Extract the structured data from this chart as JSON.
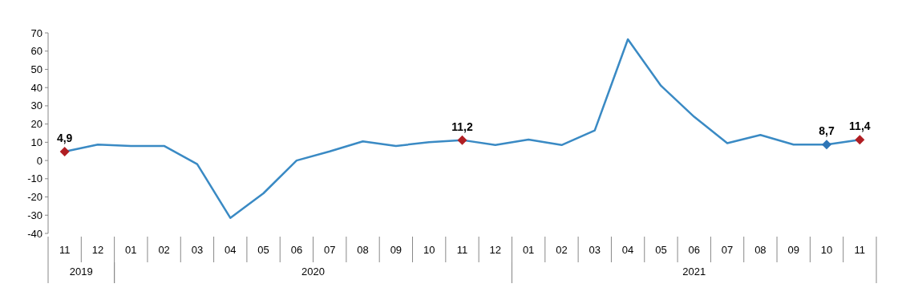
{
  "chart_data": {
    "type": "line",
    "categories": [
      "11",
      "12",
      "01",
      "02",
      "03",
      "04",
      "05",
      "06",
      "07",
      "08",
      "09",
      "10",
      "11",
      "12",
      "01",
      "02",
      "03",
      "04",
      "05",
      "06",
      "07",
      "08",
      "09",
      "10",
      "11"
    ],
    "annotations": [
      "2019",
      "2020",
      "2021"
    ],
    "series": [
      {
        "color": "#3a8ac4",
        "values": [
          4.9,
          8.7,
          8,
          8,
          -2,
          -31.5,
          -18,
          0,
          5,
          10.5,
          8,
          10,
          11.2,
          8.5,
          11.5,
          8.5,
          16.5,
          66.5,
          41,
          24,
          9.5,
          14,
          8.7,
          8.7,
          11.4
        ]
      },
      {
        "type": "scatter",
        "colors": [
          "#b01e23",
          null,
          null,
          null,
          null,
          null,
          null,
          null,
          null,
          null,
          null,
          null,
          "#b01e23",
          null,
          null,
          null,
          null,
          null,
          null,
          null,
          null,
          null,
          null,
          "#2e75b6",
          "#b01e23"
        ],
        "values": [
          4.9,
          null,
          null,
          null,
          null,
          null,
          null,
          null,
          null,
          null,
          null,
          null,
          11.2,
          null,
          null,
          null,
          null,
          null,
          null,
          null,
          null,
          null,
          null,
          8.7,
          11.4
        ],
        "value_labels": [
          "4,9",
          null,
          null,
          null,
          null,
          null,
          null,
          null,
          null,
          null,
          null,
          null,
          "11,2",
          null,
          null,
          null,
          null,
          null,
          null,
          null,
          null,
          null,
          null,
          "8,7",
          "11,4"
        ],
        "marker": "diamond"
      }
    ],
    "ylim": [
      -40,
      70
    ],
    "yticks": [
      -40,
      -30,
      -20,
      -10,
      0,
      10,
      20,
      30,
      40,
      50,
      60,
      70
    ],
    "grid": false
  }
}
